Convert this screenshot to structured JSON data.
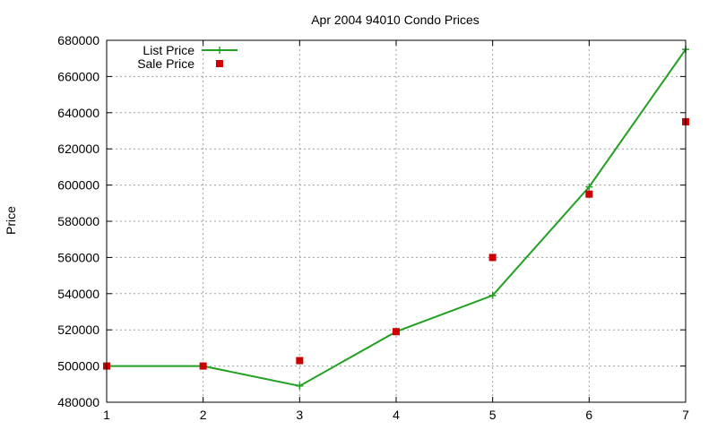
{
  "chart_data": {
    "type": "line",
    "title": "Apr 2004 94010 Condo Prices",
    "xlabel": "",
    "ylabel": "Price",
    "xlim": [
      1,
      7
    ],
    "ylim": [
      480000,
      680000
    ],
    "x_ticks": [
      "1",
      "2",
      "3",
      "4",
      "5",
      "6",
      "7"
    ],
    "y_ticks": [
      "480000",
      "500000",
      "520000",
      "540000",
      "560000",
      "580000",
      "600000",
      "620000",
      "640000",
      "660000",
      "680000"
    ],
    "grid": true,
    "legend_position": "top-left",
    "x": [
      1,
      2,
      3,
      4,
      5,
      6,
      7
    ],
    "series": [
      {
        "name": "List Price",
        "style": "line-with-plus-markers",
        "color": "#22a022",
        "values": [
          500000,
          500000,
          489000,
          519000,
          539000,
          599000,
          675000
        ]
      },
      {
        "name": "Sale Price",
        "style": "square-markers",
        "color": "#cc0000",
        "values": [
          500000,
          500000,
          503000,
          519000,
          560000,
          595000,
          635000
        ]
      }
    ]
  }
}
